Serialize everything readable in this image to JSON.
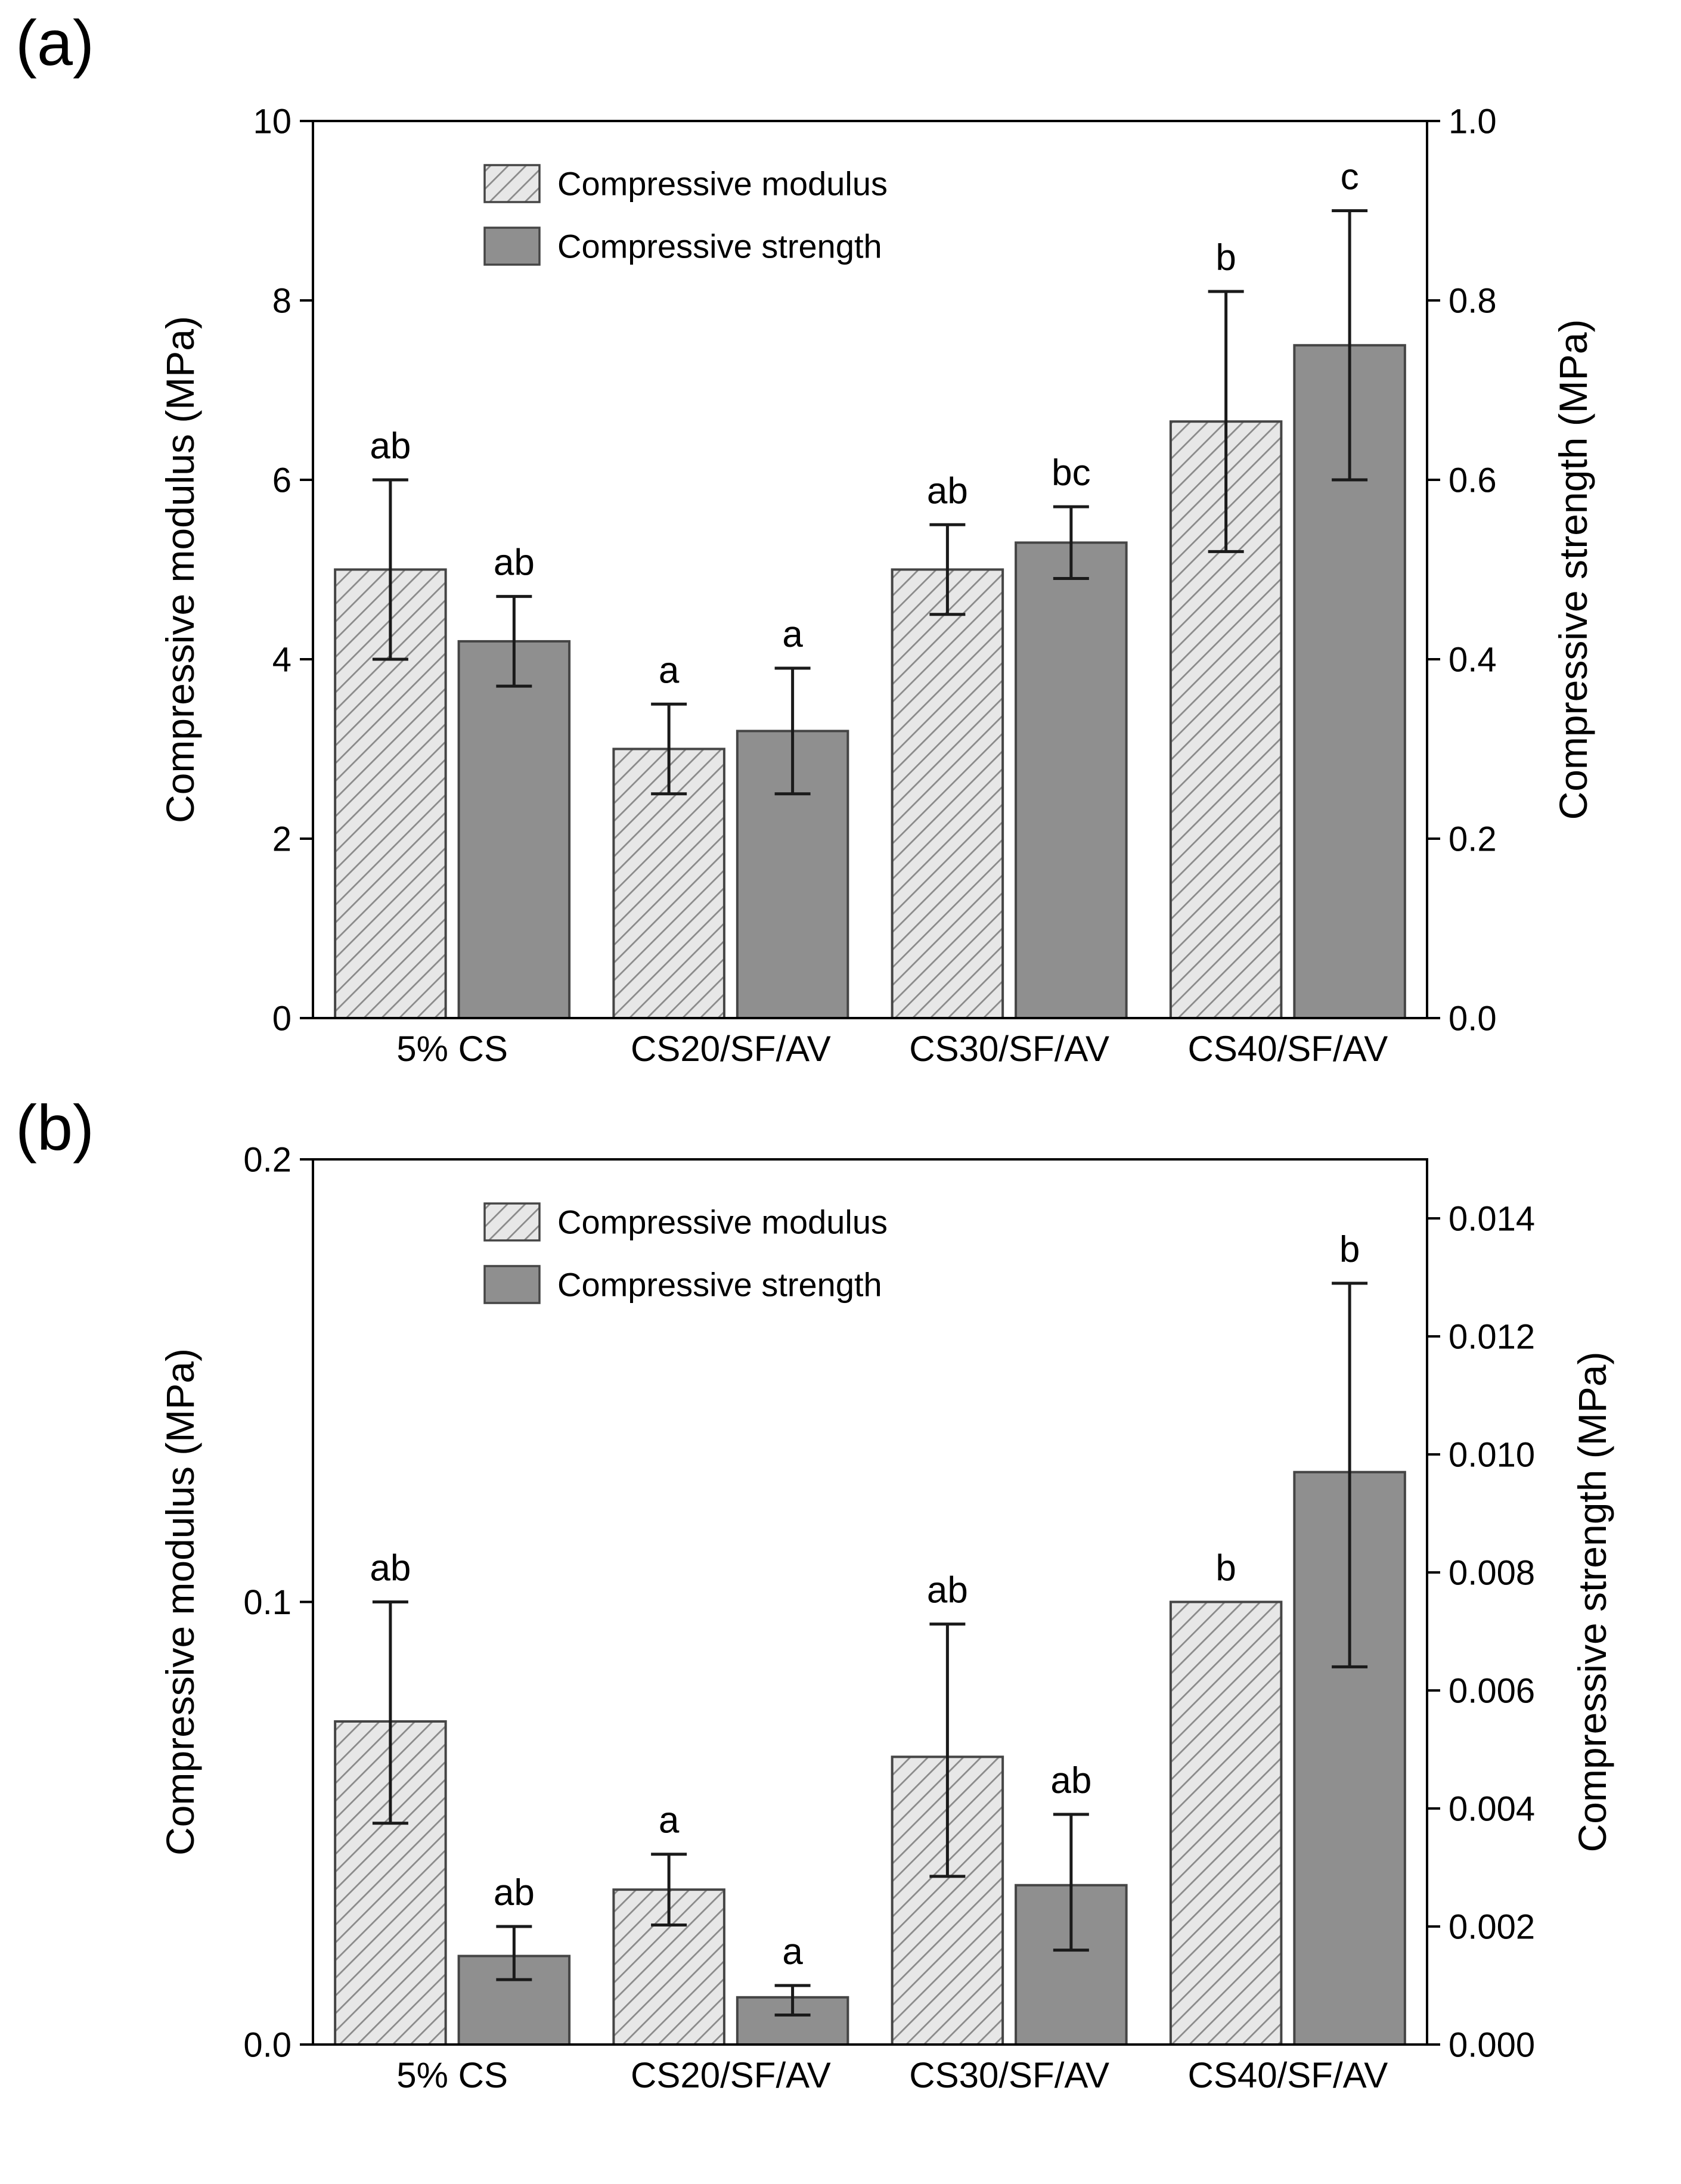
{
  "colors": {
    "modulus_fill": "#e7e7e7",
    "modulus_hatch": "#8a8a8a",
    "strength_fill": "#8f8f8f",
    "bar_edge": "#454545",
    "error_bar": "#1a1a1a",
    "axis": "#000000",
    "text": "#000000",
    "background": "#ffffff"
  },
  "chart_data": [
    {
      "panel_label": "(a)",
      "type": "bar",
      "categories": [
        "5% CS",
        "CS20/SF/AV",
        "CS30/SF/AV",
        "CS40/SF/AV"
      ],
      "left_axis": {
        "label": "Compressive modulus (MPa)",
        "min": 0,
        "max": 10,
        "tick_values": [
          0,
          2,
          4,
          6,
          8,
          10
        ],
        "tick_labels": [
          "0",
          "2",
          "4",
          "6",
          "8",
          "10"
        ]
      },
      "right_axis": {
        "label": "Compressive strength (MPa)",
        "min": 0,
        "max": 1.0,
        "tick_values": [
          0,
          0.2,
          0.4,
          0.6,
          0.8,
          1.0
        ],
        "tick_labels": [
          "0.0",
          "0.2",
          "0.4",
          "0.6",
          "0.8",
          "1.0"
        ]
      },
      "legend": [
        {
          "label": "Compressive modulus",
          "style": "hatched"
        },
        {
          "label": "Compressive strength",
          "style": "solid"
        }
      ],
      "series": [
        {
          "name": "Compressive modulus",
          "axis": "left",
          "style": "hatched",
          "values": [
            5.0,
            3.0,
            5.0,
            6.65
          ],
          "error_low": [
            4.0,
            2.5,
            4.5,
            5.2
          ],
          "error_high": [
            6.0,
            3.5,
            5.5,
            8.1
          ],
          "sig_labels": [
            "ab",
            "a",
            "ab",
            "b"
          ]
        },
        {
          "name": "Compressive strength",
          "axis": "right",
          "style": "solid",
          "values": [
            0.42,
            0.32,
            0.53,
            0.75
          ],
          "error_low": [
            0.37,
            0.25,
            0.49,
            0.6
          ],
          "error_high": [
            0.47,
            0.39,
            0.57,
            0.9
          ],
          "sig_labels": [
            "ab",
            "a",
            "bc",
            "c"
          ]
        }
      ]
    },
    {
      "panel_label": "(b)",
      "type": "bar",
      "categories": [
        "5% CS",
        "CS20/SF/AV",
        "CS30/SF/AV",
        "CS40/SF/AV"
      ],
      "left_axis": {
        "label": "Compressive modulus (MPa)",
        "min": 0,
        "max": 0.2,
        "tick_values": [
          0,
          0.1,
          0.2
        ],
        "tick_labels": [
          "0.0",
          "0.1",
          "0.2"
        ]
      },
      "right_axis": {
        "label": "Compressive strength (MPa)",
        "min": 0,
        "max": 0.015,
        "tick_values": [
          0,
          0.002,
          0.004,
          0.006,
          0.008,
          0.01,
          0.012,
          0.014
        ],
        "tick_labels": [
          "0.000",
          "0.002",
          "0.004",
          "0.006",
          "0.008",
          "0.010",
          "0.012",
          "0.014"
        ]
      },
      "legend": [
        {
          "label": "Compressive modulus",
          "style": "hatched"
        },
        {
          "label": "Compressive strength",
          "style": "solid"
        }
      ],
      "series": [
        {
          "name": "Compressive modulus",
          "axis": "left",
          "style": "hatched",
          "values": [
            0.073,
            0.035,
            0.065,
            0.1
          ],
          "error_low": [
            0.05,
            0.027,
            0.038,
            null
          ],
          "error_high": [
            0.1,
            0.043,
            0.095,
            null
          ],
          "sig_labels": [
            "ab",
            "a",
            "ab",
            "b"
          ]
        },
        {
          "name": "Compressive strength",
          "axis": "right",
          "style": "solid",
          "values": [
            0.0015,
            0.0008,
            0.0027,
            0.0097
          ],
          "error_low": [
            0.0011,
            0.0005,
            0.0016,
            0.0064
          ],
          "error_high": [
            0.002,
            0.001,
            0.0039,
            0.0129
          ],
          "sig_labels": [
            "ab",
            "a",
            "ab",
            "b"
          ]
        }
      ]
    }
  ]
}
